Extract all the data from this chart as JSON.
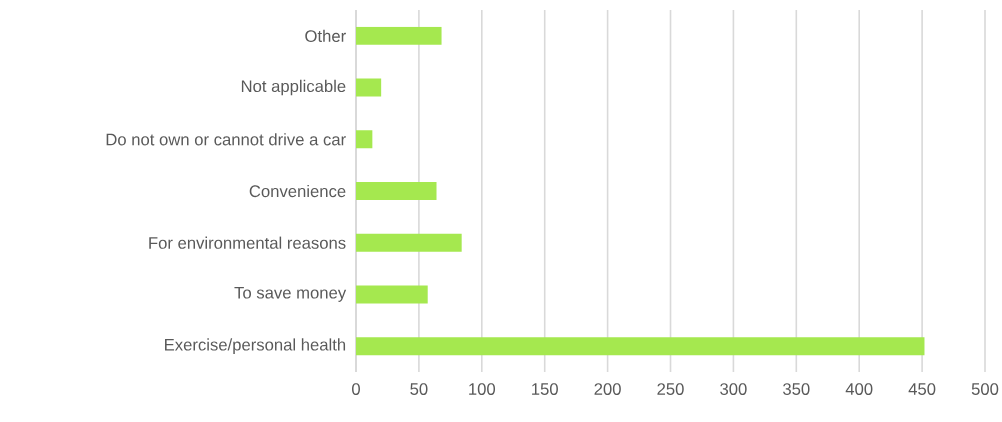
{
  "chart_data": {
    "type": "bar",
    "orientation": "horizontal",
    "categories": [
      "Other",
      "Not applicable",
      "Do not own or cannot drive a car",
      "Convenience",
      "For environmental reasons",
      "To save money",
      "Exercise/personal health"
    ],
    "values": [
      68,
      20,
      13,
      64,
      84,
      57,
      452
    ],
    "color": "#a5e84f",
    "xlim": [
      0,
      500
    ],
    "xticks": [
      0,
      50,
      100,
      150,
      200,
      250,
      300,
      350,
      400,
      450,
      500
    ],
    "grid": "x"
  }
}
